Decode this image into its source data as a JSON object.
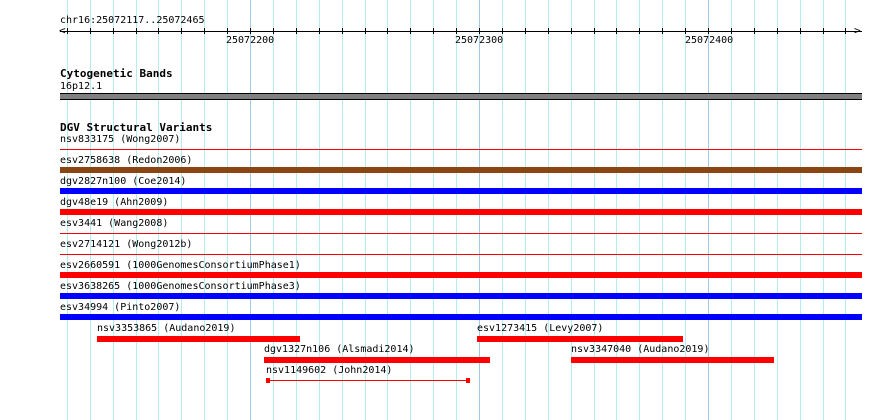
{
  "ruler": {
    "location": "chr16:25072117..25072465",
    "start": 25072117,
    "end": 25072465,
    "major_labels": [
      "25072200",
      "25072300",
      "25072400"
    ]
  },
  "cytobands": {
    "title": "Cytogenetic Bands",
    "band": "16p12.1",
    "color": "#808080"
  },
  "dgv": {
    "title": "DGV Structural Variants",
    "full_rows": [
      {
        "label": "nsv833175 (Wong2007)",
        "color": "#ff0000",
        "style": "thin"
      },
      {
        "label": "esv2758638 (Redon2006)",
        "color": "#8b4513",
        "style": "thick"
      },
      {
        "label": "dgv2827n100 (Coe2014)",
        "color": "#0000ff",
        "style": "thick"
      },
      {
        "label": "dgv48e19 (Ahn2009)",
        "color": "#ff0000",
        "style": "thick"
      },
      {
        "label": "esv3441 (Wang2008)",
        "color": "#ff0000",
        "style": "thin"
      },
      {
        "label": "esv2714121 (Wong2012b)",
        "color": "#ff0000",
        "style": "thin"
      },
      {
        "label": "esv2660591 (1000GenomesConsortiumPhase1)",
        "color": "#ff0000",
        "style": "thick"
      },
      {
        "label": "esv3638265 (1000GenomesConsortiumPhase3)",
        "color": "#0000ff",
        "style": "thick"
      },
      {
        "label": "esv34994 (Pinto2007)",
        "color": "#0000ff",
        "style": "thick"
      }
    ],
    "partial": [
      {
        "label": "nsv3353865 (Audano2019)",
        "start": 25072133,
        "end": 25072222,
        "row": 0,
        "color": "#ff0000",
        "style": "thick"
      },
      {
        "label": "esv1273415 (Levy2007)",
        "start": 25072299,
        "end": 25072389,
        "row": 0,
        "color": "#ff0000",
        "style": "thick"
      },
      {
        "label": "dgv1327n106 (Alsmadi2014)",
        "start": 25072206,
        "end": 25072305,
        "row": 1,
        "color": "#ff0000",
        "style": "thick"
      },
      {
        "label": "nsv3347040 (Audano2019)",
        "start": 25072340,
        "end": 25072429,
        "row": 1,
        "color": "#ff0000",
        "style": "thick"
      },
      {
        "label": "nsv1149602 (John2014)",
        "start": 25072207,
        "end": 25072296,
        "row": 2,
        "color": "#ff0000",
        "style": "line"
      }
    ]
  }
}
